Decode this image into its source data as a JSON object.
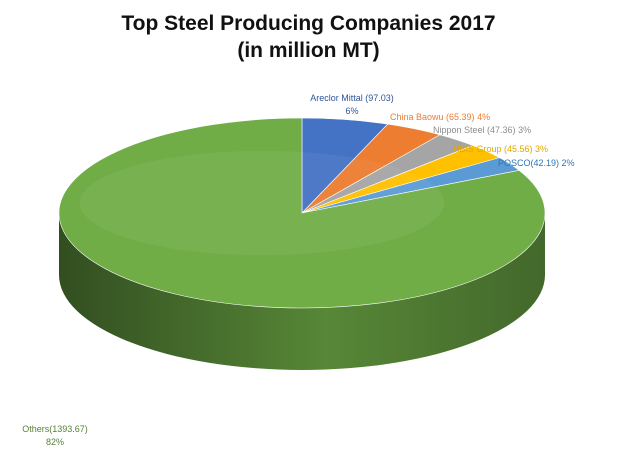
{
  "chart_data": {
    "type": "pie",
    "title": "Top Steel Producing Companies 2017",
    "subtitle": "(in million MT)",
    "slices": [
      {
        "label": "Areclor Mittal (97.03)",
        "pct_label": "6%",
        "value": 97.03,
        "color": "#4472C4",
        "label_color": "#2F5597"
      },
      {
        "label": "China Baowu  (65.39)",
        "pct_label": "4%",
        "value": 65.39,
        "color": "#ED7D31",
        "label_color": "#ED7D31"
      },
      {
        "label": "Nippon Steel (47.36)",
        "pct_label": "3%",
        "value": 47.36,
        "color": "#A5A5A5",
        "label_color": "#8C8C8C"
      },
      {
        "label": "HBIS Group (45.56)",
        "pct_label": "3%",
        "value": 45.56,
        "color": "#FFC000",
        "label_color": "#E0A800"
      },
      {
        "label": "POSCO(42.19)",
        "pct_label": "2%",
        "value": 42.19,
        "color": "#5B9BD5",
        "label_color": "#2E75B6"
      },
      {
        "label": "Others(1393.67)",
        "pct_label": "82%",
        "value": 1393.67,
        "color": "#70AD47",
        "label_color": "#548235"
      }
    ]
  }
}
